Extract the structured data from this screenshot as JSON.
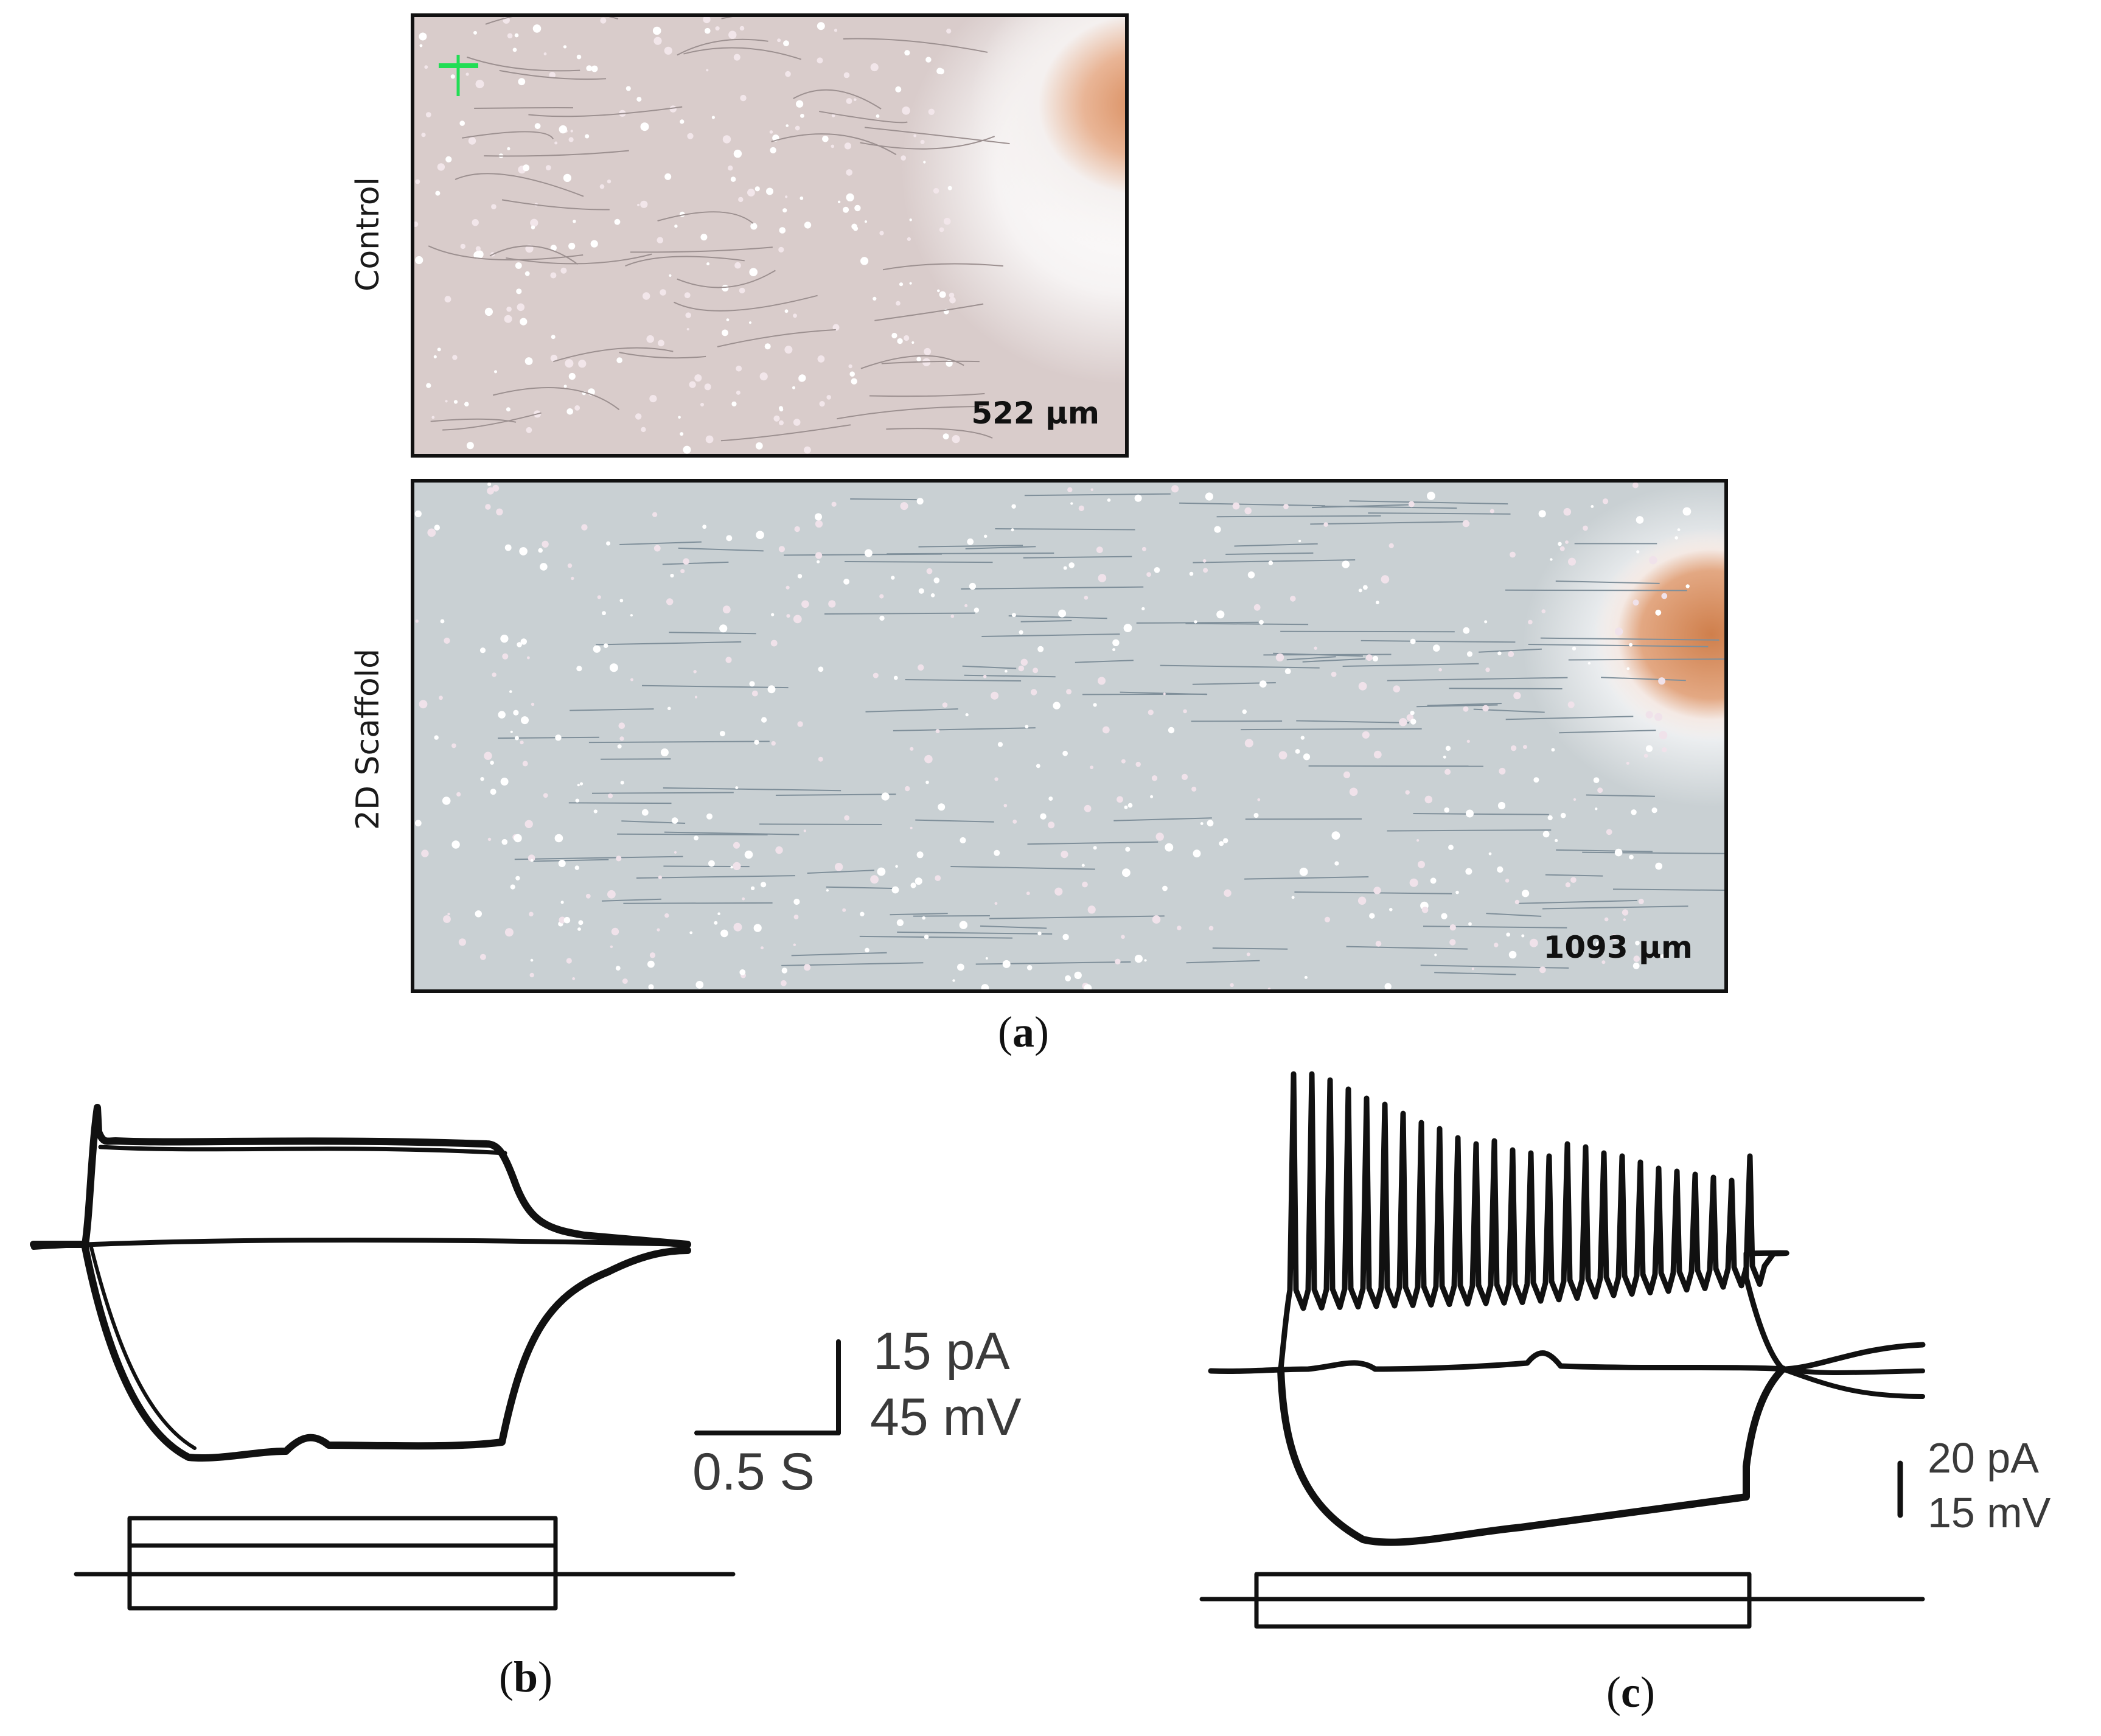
{
  "panel_a": {
    "letter": "a",
    "control": {
      "row_label": "Control",
      "measurement": "522 µm"
    },
    "scaffold": {
      "row_label": "2D Scaffold",
      "measurement": "1093 µm"
    }
  },
  "panel_b": {
    "letter": "b",
    "scale_bar": {
      "current": "15 pA",
      "voltage": "45 mV",
      "time": "0.5 S"
    }
  },
  "panel_c": {
    "letter": "c",
    "scale_bar": {
      "current": "20 pA",
      "voltage": "15 mV"
    }
  },
  "colors": {
    "trace": "#111111",
    "scale_text": "#3a3a3a",
    "control_background": "#d9cccb",
    "scaffold_background": "#c9d0d3",
    "explant_core": "#d88a5a",
    "scale_marker": "#22dd55"
  }
}
